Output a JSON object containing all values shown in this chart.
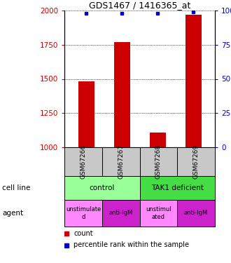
{
  "title": "GDS1467 / 1416365_at",
  "samples": [
    "GSM67266",
    "GSM67267",
    "GSM67268",
    "GSM67269"
  ],
  "counts": [
    1480,
    1770,
    1110,
    1970
  ],
  "percentiles": [
    98,
    98,
    98,
    99
  ],
  "ymin": 1000,
  "ymax": 2000,
  "y2min": 0,
  "y2max": 100,
  "yticks": [
    1000,
    1250,
    1500,
    1750,
    2000
  ],
  "y2ticks": [
    0,
    25,
    50,
    75,
    100
  ],
  "bar_color": "#cc0000",
  "dot_color": "#0000cc",
  "cell_line_labels": [
    "control",
    "TAK1 deficient"
  ],
  "cell_line_spans": [
    [
      0,
      2
    ],
    [
      2,
      4
    ]
  ],
  "cell_line_color_light": "#99ff99",
  "cell_line_color_dark": "#44dd44",
  "agent_labels": [
    "unstimulate\nd",
    "anti-IgM",
    "unstimul\nated",
    "anti-IgM"
  ],
  "agent_colors": [
    "#ff88ff",
    "#cc22cc",
    "#ff88ff",
    "#cc22cc"
  ],
  "sample_box_color": "#c8c8c8",
  "legend_count_color": "#cc0000",
  "legend_pct_color": "#0000cc",
  "bar_width": 0.45
}
